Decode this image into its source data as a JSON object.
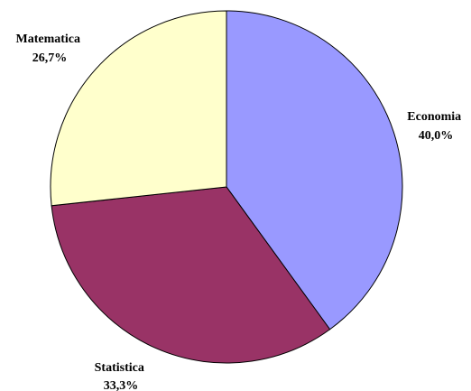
{
  "chart_data": {
    "type": "pie",
    "start_angle_deg": 90,
    "direction": "clockwise",
    "slices": [
      {
        "label": "Economia",
        "value": 40.0,
        "value_label": "40,0%",
        "color": "#9999ff"
      },
      {
        "label": "Statistica",
        "value": 33.3,
        "value_label": "33,3%",
        "color": "#993366"
      },
      {
        "label": "Matematica",
        "value": 26.7,
        "value_label": "26,7%",
        "color": "#ffffcc"
      }
    ]
  }
}
